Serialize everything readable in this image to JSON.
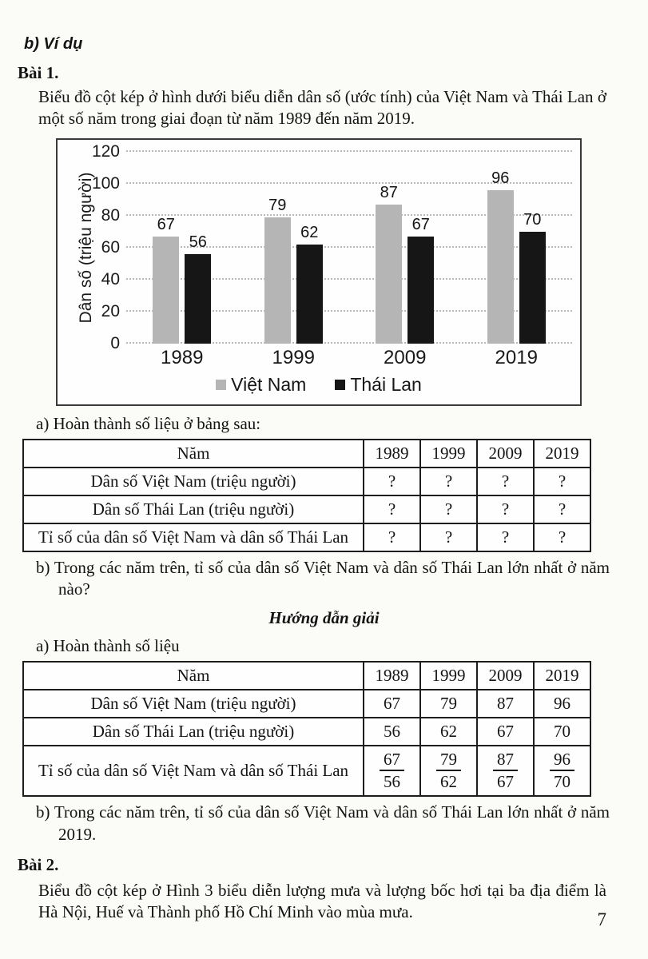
{
  "example_heading": "b) Ví dụ",
  "exercise1": {
    "title": "Bài 1.",
    "intro": "Biểu đồ cột kép ở hình dưới biểu diễn dân số (ước tính) của Việt Nam và Thái Lan ở một số năm trong giai đoạn từ năm 1989 đến năm 2019.",
    "part_a_label": "a) Hoàn thành số liệu ở bảng sau:",
    "part_b_question": "b) Trong các năm trên, tỉ số của dân số Việt Nam và dân số Thái Lan lớn nhất ở năm nào?"
  },
  "chart_data": {
    "type": "bar",
    "categories": [
      "1989",
      "1999",
      "2009",
      "2019"
    ],
    "series": [
      {
        "name": "Việt Nam",
        "color": "#b5b5b5",
        "values": [
          67,
          79,
          87,
          96
        ]
      },
      {
        "name": "Thái Lan",
        "color": "#161616",
        "values": [
          56,
          62,
          67,
          70
        ]
      }
    ],
    "title": "",
    "xlabel": "",
    "ylabel": "Dân số (triệu người)",
    "yticks": [
      0,
      20,
      40,
      60,
      80,
      100,
      120
    ],
    "ylim": [
      0,
      120
    ],
    "grid": "horizontal-dotted",
    "legend_position": "bottom",
    "value_labels": true
  },
  "question_table": {
    "header": [
      "Năm",
      "1989",
      "1999",
      "2009",
      "2019"
    ],
    "rows": [
      {
        "label": "Dân số Việt Nam (triệu người)",
        "values": [
          "?",
          "?",
          "?",
          "?"
        ],
        "fraction": false
      },
      {
        "label": "Dân số Thái Lan (triệu người)",
        "values": [
          "?",
          "?",
          "?",
          "?"
        ],
        "fraction": false
      },
      {
        "label": "Tỉ số của dân số Việt Nam và dân số Thái Lan",
        "values": [
          "?",
          "?",
          "?",
          "?"
        ],
        "fraction": false
      }
    ]
  },
  "solution": {
    "heading": "Hướng dẫn giải",
    "part_a_label": "a) Hoàn thành số liệu",
    "table": {
      "header": [
        "Năm",
        "1989",
        "1999",
        "2009",
        "2019"
      ],
      "rows": [
        {
          "label": "Dân số Việt Nam (triệu người)",
          "values": [
            "67",
            "79",
            "87",
            "96"
          ],
          "fraction": false
        },
        {
          "label": "Dân số Thái Lan (triệu người)",
          "values": [
            "56",
            "62",
            "67",
            "70"
          ],
          "fraction": false
        },
        {
          "label": "Tỉ số của dân số Việt Nam và dân số Thái Lan",
          "values": [
            "67/56",
            "79/62",
            "87/67",
            "96/70"
          ],
          "fraction": true
        }
      ]
    },
    "part_b_answer": "b) Trong các năm trên, tỉ số của dân số Việt Nam và dân số Thái Lan lớn nhất ở năm 2019."
  },
  "exercise2": {
    "title": "Bài 2.",
    "intro": "Biểu đồ cột kép ở Hình 3 biểu diễn lượng mưa và lượng bốc hơi tại ba địa điểm là Hà Nội, Huế và Thành phố Hồ Chí Minh vào mùa mưa."
  },
  "page_number": "7"
}
